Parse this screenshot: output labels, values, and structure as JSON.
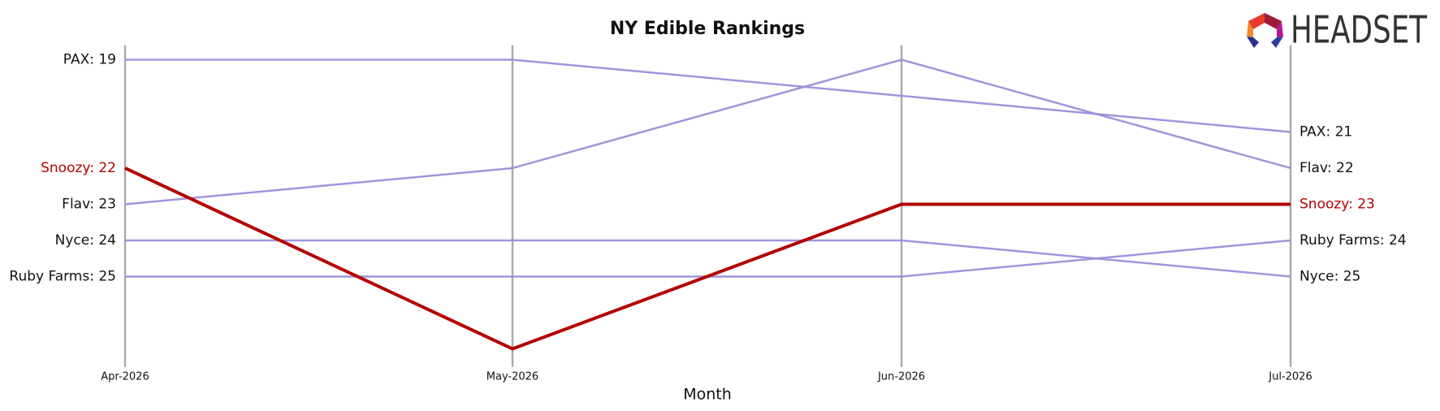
{
  "chart_data": {
    "type": "line",
    "title": "NY Edible Rankings",
    "x_label": "Month",
    "logo_text": "HEADSET",
    "categories": [
      "Apr-2026",
      "May-2026",
      "Jun-2026",
      "Jul-2026"
    ],
    "ylim": [
      18.6,
      27.5
    ],
    "y_inverted": true,
    "series": [
      {
        "name": "PAX",
        "color": "#9b8fd8",
        "values": [
          19,
          19,
          20,
          21
        ],
        "start_label": "PAX: 19",
        "end_label": "PAX: 21"
      },
      {
        "name": "Flav",
        "color": "#9b8fd8",
        "values": [
          23,
          22,
          19,
          22
        ],
        "start_label": "Flav: 23",
        "end_label": "Flav: 22"
      },
      {
        "name": "Nyce",
        "color": "#9b8fd8",
        "values": [
          24,
          24,
          24,
          25
        ],
        "start_label": "Nyce: 24",
        "end_label": "Nyce: 25"
      },
      {
        "name": "Ruby Farms",
        "color": "#9b8fd8",
        "values": [
          25,
          25,
          25,
          24
        ],
        "start_label": "Ruby Farms: 25",
        "end_label": "Ruby Farms: 24"
      },
      {
        "name": "Snoozy",
        "color": "#b30000",
        "highlight": true,
        "values": [
          22,
          27,
          23,
          23
        ],
        "start_label": "Snoozy: 22",
        "end_label": "Snoozy: 23"
      }
    ]
  }
}
